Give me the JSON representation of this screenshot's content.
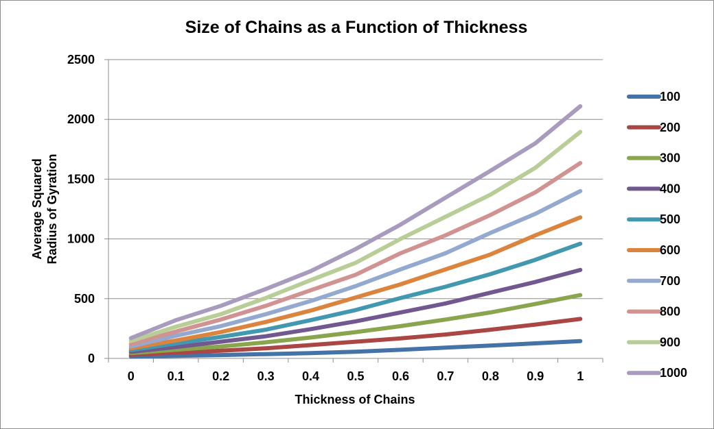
{
  "chart_data": {
    "type": "line",
    "title": "Size of Chains as a Function of Thickness",
    "xlabel": "Thickness of Chains",
    "ylabel_lines": [
      "Average Squared",
      "Radius of Gyration"
    ],
    "x": [
      0,
      0.1,
      0.2,
      0.3,
      0.4,
      0.5,
      0.6,
      0.7,
      0.8,
      0.9,
      1
    ],
    "x_tick_labels": [
      "0",
      "0.1",
      "0.2",
      "0.3",
      "0.4",
      "0.5",
      "0.6",
      "0.7",
      "0.8",
      "0.9",
      "1"
    ],
    "ylim": [
      0,
      2500
    ],
    "y_ticks": [
      0,
      500,
      1000,
      1500,
      2000,
      2500
    ],
    "y_tick_labels": [
      "0",
      "500",
      "1000",
      "1500",
      "2000",
      "2500"
    ],
    "grid": "horizontal",
    "legend_position": "right",
    "series": [
      {
        "name": "100",
        "color": "#4572A7",
        "values": [
          15,
          22,
          28,
          36,
          45,
          56,
          72,
          90,
          108,
          126,
          145
        ]
      },
      {
        "name": "200",
        "color": "#AA4643",
        "values": [
          30,
          48,
          65,
          85,
          112,
          140,
          168,
          200,
          240,
          283,
          330
        ]
      },
      {
        "name": "300",
        "color": "#89A54E",
        "values": [
          45,
          72,
          100,
          135,
          175,
          220,
          270,
          325,
          385,
          455,
          530
        ]
      },
      {
        "name": "400",
        "color": "#71588F",
        "values": [
          55,
          95,
          140,
          185,
          245,
          310,
          385,
          460,
          550,
          640,
          740
        ]
      },
      {
        "name": "500",
        "color": "#4198AF",
        "values": [
          70,
          125,
          180,
          240,
          320,
          405,
          505,
          600,
          705,
          825,
          960
        ]
      },
      {
        "name": "600",
        "color": "#DB843D",
        "values": [
          85,
          150,
          220,
          305,
          400,
          510,
          620,
          745,
          870,
          1030,
          1180
        ]
      },
      {
        "name": "700",
        "color": "#93A9CF",
        "values": [
          100,
          190,
          270,
          370,
          480,
          605,
          745,
          880,
          1050,
          1210,
          1400
        ]
      },
      {
        "name": "800",
        "color": "#D19392",
        "values": [
          120,
          225,
          325,
          440,
          570,
          700,
          880,
          1030,
          1200,
          1390,
          1635
        ]
      },
      {
        "name": "900",
        "color": "#B9CD96",
        "values": [
          145,
          265,
          370,
          505,
          655,
          800,
          1000,
          1185,
          1370,
          1595,
          1895
        ]
      },
      {
        "name": "1000",
        "color": "#A99BBD",
        "values": [
          170,
          320,
          440,
          580,
          730,
          915,
          1120,
          1345,
          1570,
          1800,
          2110
        ]
      }
    ]
  }
}
